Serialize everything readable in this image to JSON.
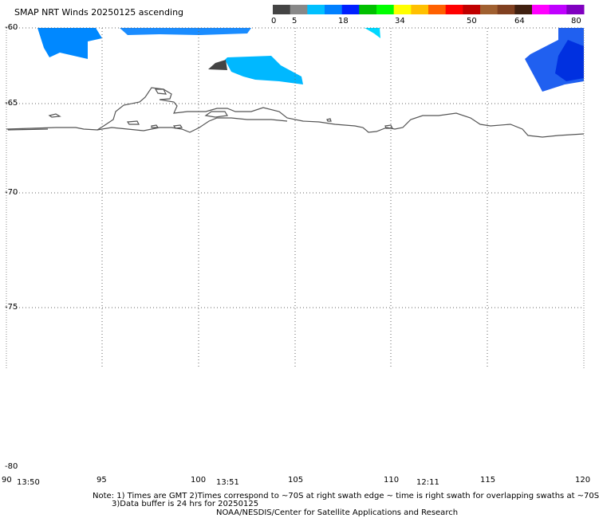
{
  "title": "SMAP NRT Winds 20250125 ascending",
  "colorbar": {
    "ticks": [
      "0",
      "5",
      "18",
      "34",
      "50",
      "64",
      "80"
    ],
    "segments": [
      {
        "color": "#444444"
      },
      {
        "color": "#888888"
      },
      {
        "color": "#00c0ff"
      },
      {
        "color": "#0080ff"
      },
      {
        "color": "#0020ff"
      },
      {
        "color": "#00c000"
      },
      {
        "color": "#00ff00"
      },
      {
        "color": "#ffff00"
      },
      {
        "color": "#ffc000"
      },
      {
        "color": "#ff6000"
      },
      {
        "color": "#ff0000"
      },
      {
        "color": "#c00000"
      },
      {
        "color": "#a06030"
      },
      {
        "color": "#804020"
      },
      {
        "color": "#402010"
      },
      {
        "color": "#ff00ff"
      },
      {
        "color": "#c000ff"
      },
      {
        "color": "#8000c0"
      }
    ]
  },
  "latitude_labels": [
    "-60",
    "-65",
    "-70",
    "-75",
    "-80"
  ],
  "longitude_labels": [
    "90",
    "95",
    "100",
    "105",
    "110",
    "115",
    "120"
  ],
  "pass_times": [
    "13:50",
    "13:51",
    "12:11"
  ],
  "notes": {
    "line1": "Note: 1) Times are GMT 2)Times correspond to ~70S at right swath edge ~ time is right swath for overlapping swaths at ~70S",
    "line2": "3)Data buffer is 24 hrs for 20250125",
    "line3": "NOAA/NESDIS/Center for Satellite Applications and Research"
  },
  "colors": {
    "wind_light": "#00c8ff",
    "wind_mid": "#0090ff",
    "wind_strong": "#0030e0",
    "calm": "#444444",
    "coastline": "#555555"
  }
}
